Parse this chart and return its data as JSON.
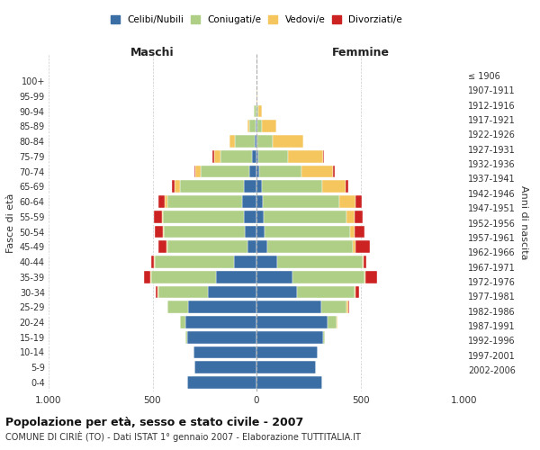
{
  "age_groups": [
    "0-4",
    "5-9",
    "10-14",
    "15-19",
    "20-24",
    "25-29",
    "30-34",
    "35-39",
    "40-44",
    "45-49",
    "50-54",
    "55-59",
    "60-64",
    "65-69",
    "70-74",
    "75-79",
    "80-84",
    "85-89",
    "90-94",
    "95-99",
    "100+"
  ],
  "birth_years": [
    "2002-2006",
    "1997-2001",
    "1992-1996",
    "1987-1991",
    "1982-1986",
    "1977-1981",
    "1972-1976",
    "1967-1971",
    "1962-1966",
    "1957-1961",
    "1952-1956",
    "1947-1951",
    "1942-1946",
    "1937-1941",
    "1932-1936",
    "1927-1931",
    "1922-1926",
    "1917-1921",
    "1912-1916",
    "1907-1911",
    "≤ 1906"
  ],
  "males": {
    "celibi": [
      335,
      300,
      305,
      335,
      340,
      330,
      235,
      195,
      110,
      45,
      55,
      60,
      70,
      60,
      35,
      20,
      10,
      4,
      2,
      0,
      0
    ],
    "coniugati": [
      0,
      0,
      0,
      5,
      30,
      100,
      235,
      310,
      380,
      385,
      390,
      390,
      360,
      310,
      235,
      155,
      95,
      30,
      10,
      2,
      0
    ],
    "vedovi": [
      0,
      0,
      0,
      0,
      0,
      0,
      5,
      5,
      5,
      5,
      5,
      5,
      10,
      25,
      25,
      30,
      25,
      10,
      2,
      0,
      0
    ],
    "divorziati": [
      0,
      0,
      0,
      0,
      0,
      0,
      10,
      30,
      10,
      35,
      40,
      40,
      30,
      10,
      5,
      5,
      2,
      0,
      0,
      0,
      0
    ]
  },
  "females": {
    "nubili": [
      315,
      285,
      295,
      320,
      340,
      310,
      195,
      175,
      100,
      50,
      40,
      35,
      30,
      25,
      15,
      10,
      5,
      4,
      2,
      0,
      0
    ],
    "coniugate": [
      0,
      0,
      0,
      10,
      45,
      125,
      275,
      345,
      410,
      415,
      410,
      400,
      370,
      290,
      200,
      140,
      75,
      20,
      5,
      2,
      0
    ],
    "vedove": [
      0,
      0,
      0,
      0,
      5,
      5,
      5,
      5,
      5,
      10,
      20,
      35,
      75,
      115,
      155,
      170,
      145,
      70,
      20,
      2,
      0
    ],
    "divorziate": [
      0,
      0,
      0,
      0,
      0,
      5,
      20,
      55,
      15,
      70,
      50,
      40,
      30,
      10,
      5,
      5,
      2,
      0,
      0,
      0,
      0
    ]
  },
  "colors": {
    "celibi": "#3A6EA5",
    "coniugati": "#AECF85",
    "vedovi": "#F5C65D",
    "divorziati": "#CC2222"
  },
  "xlim": 1000,
  "title_main": "Popolazione per età, sesso e stato civile - 2007",
  "title_sub": "COMUNE DI CIRIÈ (TO) - Dati ISTAT 1° gennaio 2007 - Elaborazione TUTTITALIA.IT",
  "ylabel_left": "Fasce di età",
  "ylabel_right": "Anni di nascita",
  "xlabel_left": "Maschi",
  "xlabel_right": "Femmine",
  "legend_labels": [
    "Celibi/Nubili",
    "Coniugati/e",
    "Vedovi/e",
    "Divorziati/e"
  ]
}
